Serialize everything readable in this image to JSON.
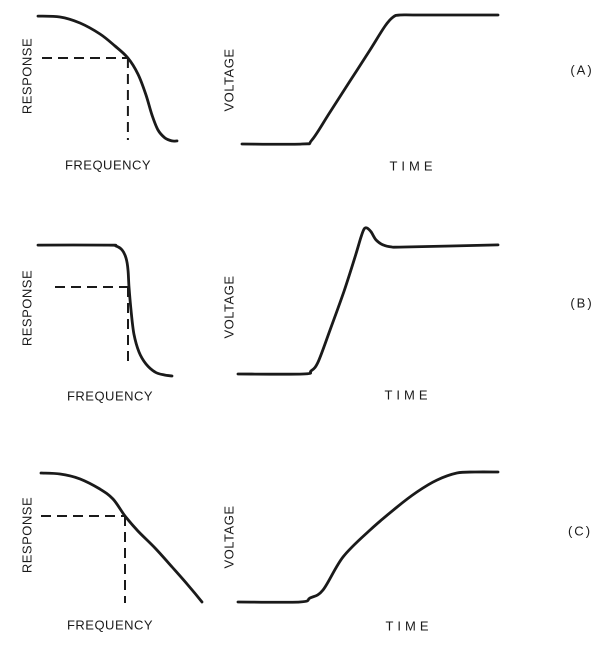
{
  "figure": {
    "background": "#ffffff",
    "ink": "#1a1a1a",
    "panels": [
      {
        "id": "A",
        "side_label": "(A)",
        "left": {
          "ylabel": "RESPONSE",
          "xlabel": "FREQUENCY"
        },
        "right": {
          "ylabel": "VOLTAGE",
          "xlabel": "TIME"
        }
      },
      {
        "id": "B",
        "side_label": "(B)",
        "left": {
          "ylabel": "RESPONSE",
          "xlabel": "FREQUENCY"
        },
        "right": {
          "ylabel": "VOLTAGE",
          "xlabel": "TIME"
        }
      },
      {
        "id": "C",
        "side_label": "(C)",
        "left": {
          "ylabel": "RESPONSE",
          "xlabel": "FREQUENCY"
        },
        "right": {
          "ylabel": "VOLTAGE",
          "xlabel": "TIME"
        }
      }
    ]
  },
  "chart_data": [
    {
      "id": "a-left",
      "panel": "A",
      "position": "left",
      "type": "line",
      "xlabel": "FREQUENCY",
      "ylabel": "RESPONSE",
      "shape": "smooth gradual rolloff",
      "axis_lines": "none",
      "ticks": "none",
      "grid": false,
      "xlim": [
        0,
        100
      ],
      "ylim": [
        0,
        100
      ],
      "points": [
        [
          0,
          98.4
        ],
        [
          15.8,
          97.7
        ],
        [
          30.2,
          93
        ],
        [
          44.6,
          84.5
        ],
        [
          55.4,
          75.2
        ],
        [
          64.7,
          65.9
        ],
        [
          71.9,
          53.5
        ],
        [
          77.7,
          37.2
        ],
        [
          82,
          21.7
        ],
        [
          86.3,
          10.1
        ],
        [
          91.4,
          3.9
        ],
        [
          96.4,
          1.6
        ],
        [
          100,
          1.6
        ]
      ],
      "cutoff_marker": {
        "h_dash": {
          "y": 65.9,
          "x1": 2.9,
          "x2": 64.7
        },
        "v_dash": {
          "x": 64.7,
          "y1": 2.3,
          "y2": 65.9
        }
      }
    },
    {
      "id": "a-right",
      "panel": "A",
      "position": "right",
      "type": "line",
      "xlabel": "TIME",
      "ylabel": "VOLTAGE",
      "shape": "linear ramp step, no overshoot",
      "axis_lines": "none",
      "ticks": "none",
      "grid": false,
      "xlim": [
        0,
        100
      ],
      "ylim": [
        0,
        100
      ],
      "points": [
        [
          0,
          0
        ],
        [
          23.4,
          0
        ],
        [
          27.3,
          3.1
        ],
        [
          34.4,
          24.8
        ],
        [
          42.2,
          48.8
        ],
        [
          50,
          72.9
        ],
        [
          55.9,
          91.5
        ],
        [
          59,
          98.4
        ],
        [
          61.7,
          100
        ],
        [
          69.5,
          100
        ],
        [
          100,
          100
        ]
      ]
    },
    {
      "id": "b-left",
      "panel": "B",
      "position": "left",
      "type": "line",
      "xlabel": "FREQUENCY",
      "ylabel": "RESPONSE",
      "shape": "flat passband with sharp cutoff",
      "axis_lines": "none",
      "ticks": "none",
      "grid": false,
      "xlim": [
        0,
        100
      ],
      "ylim": [
        0,
        100
      ],
      "points": [
        [
          0,
          99.2
        ],
        [
          52.2,
          99.2
        ],
        [
          58.2,
          98.5
        ],
        [
          62.7,
          95.5
        ],
        [
          65.7,
          89.4
        ],
        [
          67.2,
          80.3
        ],
        [
          67.9,
          67.4
        ],
        [
          69.4,
          50
        ],
        [
          71.6,
          31.8
        ],
        [
          75.4,
          18.2
        ],
        [
          80.6,
          9.1
        ],
        [
          87.3,
          3
        ],
        [
          94,
          0.8
        ],
        [
          100,
          0
        ]
      ],
      "cutoff_marker": {
        "h_dash": {
          "y": 67.4,
          "x1": 12.7,
          "x2": 67.2
        },
        "v_dash": {
          "x": 67.2,
          "y1": 6.8,
          "y2": 67.4
        }
      }
    },
    {
      "id": "b-right",
      "panel": "B",
      "position": "right",
      "type": "line",
      "xlabel": "TIME",
      "ylabel": "VOLTAGE",
      "shape": "steep step with overshoot then settle",
      "axis_lines": "none",
      "ticks": "none",
      "grid": false,
      "xlim": [
        0,
        100
      ],
      "ylim": [
        0,
        100
      ],
      "points": [
        [
          0,
          0
        ],
        [
          25,
          0
        ],
        [
          28.1,
          2.1
        ],
        [
          30.8,
          8.2
        ],
        [
          35.4,
          30.1
        ],
        [
          40.8,
          56.8
        ],
        [
          45,
          80.1
        ],
        [
          47.3,
          93.8
        ],
        [
          48.5,
          99.3
        ],
        [
          49.6,
          100
        ],
        [
          51.2,
          97.3
        ],
        [
          53.1,
          91.8
        ],
        [
          55.8,
          88.4
        ],
        [
          59.2,
          87
        ],
        [
          64.2,
          87
        ],
        [
          100,
          88.4
        ]
      ]
    },
    {
      "id": "c-left",
      "panel": "C",
      "position": "left",
      "type": "line",
      "xlabel": "FREQUENCY",
      "ylabel": "RESPONSE",
      "shape": "slow nearly-linear rolloff",
      "axis_lines": "none",
      "ticks": "none",
      "grid": false,
      "xlim": [
        0,
        100
      ],
      "ylim": [
        0,
        100
      ],
      "points": [
        [
          0,
          99.2
        ],
        [
          11.8,
          98.5
        ],
        [
          24.2,
          94.7
        ],
        [
          36.6,
          87
        ],
        [
          44.7,
          79.4
        ],
        [
          52.2,
          66.4
        ],
        [
          60.2,
          55
        ],
        [
          70.8,
          42
        ],
        [
          81.4,
          27.5
        ],
        [
          91.3,
          13.7
        ],
        [
          100,
          0.8
        ]
      ],
      "cutoff_marker": {
        "h_dash": {
          "y": 66.4,
          "x1": 0,
          "x2": 52.2
        },
        "v_dash": {
          "x": 52.2,
          "y1": 0,
          "y2": 66.4
        }
      }
    },
    {
      "id": "c-right",
      "panel": "C",
      "position": "right",
      "type": "line",
      "xlabel": "TIME",
      "ylabel": "VOLTAGE",
      "shape": "slow gradual rise, no overshoot",
      "axis_lines": "none",
      "ticks": "none",
      "grid": false,
      "xlim": [
        0,
        100
      ],
      "ylim": [
        0,
        100
      ],
      "points": [
        [
          0,
          0
        ],
        [
          23.8,
          0
        ],
        [
          27.7,
          3.1
        ],
        [
          32.7,
          9.2
        ],
        [
          40.4,
          34.6
        ],
        [
          50.8,
          55.4
        ],
        [
          61.2,
          73.1
        ],
        [
          68.8,
          84.6
        ],
        [
          76.5,
          93.8
        ],
        [
          84.2,
          99.2
        ],
        [
          91.2,
          100
        ],
        [
          100,
          100
        ]
      ]
    }
  ]
}
